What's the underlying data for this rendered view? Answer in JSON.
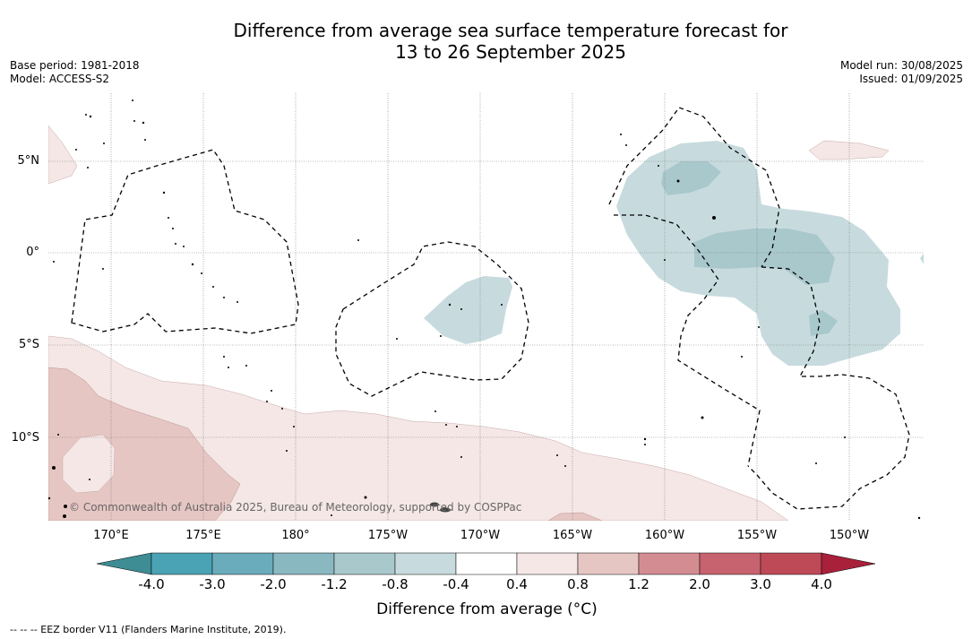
{
  "title": {
    "line1": "Difference from average sea surface temperature forecast for",
    "line2": "13 to 26 September 2025"
  },
  "meta_left": {
    "base_period": "Base period: 1981-2018",
    "model": "Model: ACCESS-S2"
  },
  "meta_right": {
    "model_run": "Model run: 30/08/2025",
    "issued": "Issued: 01/09/2025"
  },
  "lat_labels": [
    "5°N",
    "0°",
    "5°S",
    "10°S"
  ],
  "lon_labels": [
    "170°E",
    "175°E",
    "180°",
    "175°W",
    "170°W",
    "165°W",
    "160°W",
    "155°W",
    "150°W"
  ],
  "copyright": "© Commonwealth of Australia 2025, Bureau of Meteorology, supported by COSPPac",
  "colorbar": {
    "title": "Difference from average (°C)",
    "ticks": [
      "-4.0",
      "-3.0",
      "-2.0",
      "-1.2",
      "-0.8",
      "-0.4",
      "0.4",
      "0.8",
      "1.2",
      "2.0",
      "3.0",
      "4.0"
    ],
    "colors": [
      "#4aa3b5",
      "#6aacbb",
      "#89b8c1",
      "#a9c8cc",
      "#c7dbde",
      "#ffffff",
      "#f4e7e6",
      "#e6c6c3",
      "#d48c93",
      "#c7636e",
      "#be4a58"
    ],
    "under_color": "#3e8c94",
    "over_color": "#a8203a"
  },
  "footnote": "--  --  -- EEZ border V11 (Flanders Marine Institute, 2019)."
}
